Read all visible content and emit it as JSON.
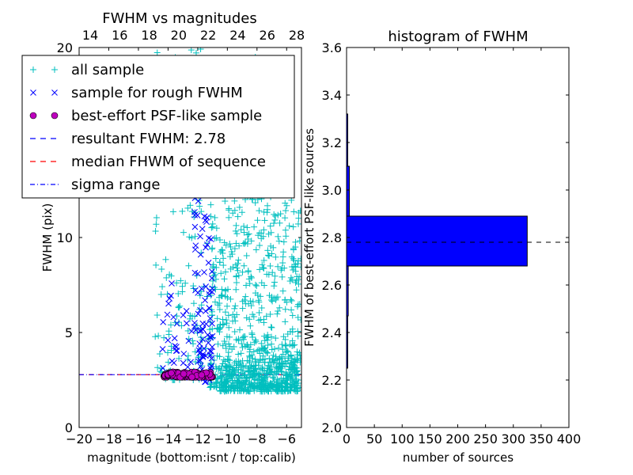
{
  "chart_data": [
    {
      "type": "scatter",
      "title": "FWHM vs magnitudes",
      "xlabel": "magnitude (bottom:isnt / top:calib)",
      "ylabel": "FWHM (pix)",
      "xlim": [
        -20,
        -5
      ],
      "ylim": [
        0,
        20
      ],
      "x_ticks": [
        -20,
        -18,
        -16,
        -14,
        -12,
        -10,
        -8,
        -6
      ],
      "x_tick_labels": [
        "−20",
        "−18",
        "−16",
        "−14",
        "−12",
        "−10",
        "−8",
        "−6"
      ],
      "y_ticks": [
        0,
        5,
        10
      ],
      "y_tick_labels": [
        "0",
        "5",
        "10"
      ],
      "top_axis_ticks": [
        "14",
        "16",
        "18",
        "20",
        "22",
        "24",
        "26",
        "28"
      ],
      "top_axis_top_value": "20",
      "grid": false,
      "legend_position": "upper-left",
      "series": [
        {
          "name": "all sample",
          "marker": "plus",
          "color": "#00BFBF",
          "clusters": [
            {
              "x_range": [
                -14.9,
                -11.0
              ],
              "y_range": [
                2.5,
                20.0
              ],
              "count": 170
            },
            {
              "x_range": [
                -11.2,
                -5.0
              ],
              "y_range": [
                2.1,
                12.0
              ],
              "count": 650
            },
            {
              "x_range": [
                -9.0,
                -7.0
              ],
              "y_range": [
                12.0,
                20.0
              ],
              "count": 40
            },
            {
              "x_range": [
                -10.5,
                -5.2
              ],
              "y_range": [
                1.9,
                3.6
              ],
              "count": 320
            }
          ]
        },
        {
          "name": "sample for rough FWHM",
          "marker": "x",
          "color": "#0000FF",
          "clusters": [
            {
              "x_range": [
                -12.3,
                -11.0
              ],
              "y_range": [
                2.4,
                19.0
              ],
              "count": 130
            },
            {
              "x_range": [
                -14.4,
                -12.3
              ],
              "y_range": [
                2.6,
                8.0
              ],
              "count": 35
            }
          ]
        },
        {
          "name": "best-effort PSF-like sample",
          "marker": "circle",
          "color": "#BF00BF",
          "clusters": [
            {
              "x_range": [
                -14.3,
                -11.0
              ],
              "y_range": [
                2.65,
                2.92
              ],
              "count": 120
            }
          ]
        },
        {
          "name": "resultant FWHM: 2.78",
          "type": "hline",
          "style": "dashed",
          "color": "#0000FF",
          "y": 2.78
        },
        {
          "name": "median FHWM of sequence",
          "type": "hline",
          "style": "dashed",
          "color": "#FF0000",
          "y": 2.78
        },
        {
          "name": "sigma range",
          "type": "hline",
          "style": "dashdot",
          "color": "#0000FF",
          "y": 2.78
        }
      ]
    },
    {
      "type": "bar",
      "orientation": "horizontal",
      "title": "histogram of FWHM",
      "xlabel": "number of sources",
      "ylabel": "FWHM of best-effort PSF-like sources",
      "xlim": [
        0,
        400
      ],
      "ylim": [
        2.0,
        3.6
      ],
      "x_ticks": [
        0,
        50,
        100,
        150,
        200,
        250,
        300,
        350,
        400
      ],
      "y_ticks": [
        2.0,
        2.2,
        2.4,
        2.6,
        2.8,
        3.0,
        3.2,
        3.4,
        3.6
      ],
      "y_tick_labels": [
        "2.0",
        "2.2",
        "2.4",
        "2.6",
        "2.8",
        "3.0",
        "3.2",
        "3.4",
        "3.6"
      ],
      "bar_color": "#0000FF",
      "bins": [
        {
          "from": 2.25,
          "to": 2.47,
          "value": 1
        },
        {
          "from": 2.47,
          "to": 2.68,
          "value": 3
        },
        {
          "from": 2.68,
          "to": 2.89,
          "value": 325
        },
        {
          "from": 2.89,
          "to": 3.1,
          "value": 5
        },
        {
          "from": 3.1,
          "to": 3.32,
          "value": 2
        }
      ],
      "reference_line": {
        "y": 2.78,
        "style": "dashed",
        "color": "#000000"
      }
    }
  ]
}
